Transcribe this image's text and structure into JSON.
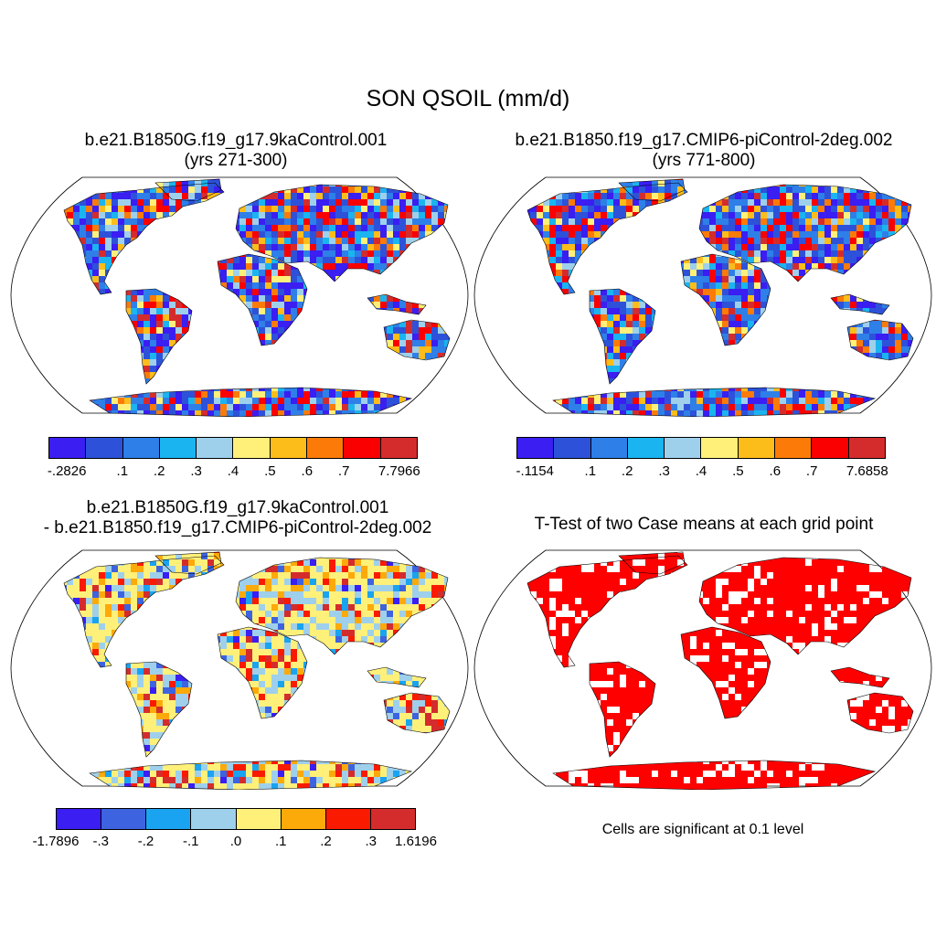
{
  "title": "SON QSOIL (mm/d)",
  "panels": [
    {
      "title_lines": [
        "b.e21.B1850G.f19_g17.9kaControl.001",
        "(yrs 271-300)"
      ],
      "colorbar": {
        "colors": [
          "#3a1ef2",
          "#2d52d9",
          "#2e7fe8",
          "#1ab4f0",
          "#9ed0ec",
          "#fff07a",
          "#fcbd1a",
          "#fc7b08",
          "#fa0000",
          "#d42c2c"
        ],
        "ticks": [
          "-.2826",
          ".1",
          ".2",
          ".3",
          ".4",
          ".5",
          ".6",
          ".7",
          "7.7966"
        ]
      }
    },
    {
      "title_lines": [
        "b.e21.B1850.f19_g17.CMIP6-piControl-2deg.002",
        "(yrs 771-800)"
      ],
      "colorbar": {
        "colors": [
          "#3a1ef2",
          "#2d52d9",
          "#2e7fe8",
          "#1ab4f0",
          "#9ed0ec",
          "#fff07a",
          "#fcbd1a",
          "#fc7b08",
          "#fa0000",
          "#d42c2c"
        ],
        "ticks": [
          "-.1154",
          ".1",
          ".2",
          ".3",
          ".4",
          ".5",
          ".6",
          ".7",
          "7.6858"
        ]
      }
    },
    {
      "title_lines": [
        "b.e21.B1850G.f19_g17.9kaControl.001",
        "- b.e21.B1850.f19_g17.CMIP6-piControl-2deg.002"
      ],
      "colorbar": {
        "colors": [
          "#3a1ef2",
          "#3d63e0",
          "#1aa3f0",
          "#9ed0ec",
          "#fff07a",
          "#fca90a",
          "#fa1a00",
          "#d42c2c"
        ],
        "ticks": [
          "-1.7896",
          "-.3",
          "-.2",
          "-.1",
          ".0",
          ".1",
          ".2",
          ".3",
          "1.6196"
        ]
      }
    },
    {
      "title_lines": [
        "T-Test of two Case means at each grid point"
      ],
      "note": "Cells are significant at 0.1 level",
      "color": "#ff0000"
    }
  ]
}
